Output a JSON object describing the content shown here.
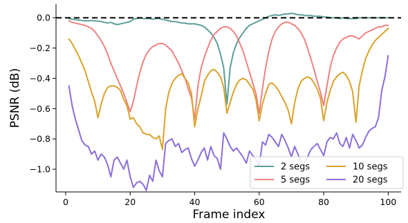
{
  "chart_data": {
    "type": "line",
    "xlabel": "Frame index",
    "ylabel": "PSNR (dB)",
    "xlim": [
      -3,
      104
    ],
    "ylim": [
      -1.15,
      0.09
    ],
    "xticks": [
      0,
      20,
      40,
      60,
      80,
      100
    ],
    "yticks": [
      0.0,
      -0.2,
      -0.4,
      -0.6,
      -0.8,
      -1.0
    ],
    "ytick_labels": [
      "0.0",
      "−0.2",
      "−0.4",
      "−0.6",
      "−0.8",
      "−1.0"
    ],
    "grid": false,
    "legend_position": "lower-right",
    "reference_line": {
      "y": 0.0,
      "style": "dashed",
      "color": "#000000"
    },
    "x": [
      1,
      2,
      3,
      4,
      5,
      6,
      7,
      8,
      9,
      10,
      11,
      12,
      13,
      14,
      15,
      16,
      17,
      18,
      19,
      20,
      21,
      22,
      23,
      24,
      25,
      26,
      27,
      28,
      29,
      30,
      31,
      32,
      33,
      34,
      35,
      36,
      37,
      38,
      39,
      40,
      41,
      42,
      43,
      44,
      45,
      46,
      47,
      48,
      49,
      50,
      51,
      52,
      53,
      54,
      55,
      56,
      57,
      58,
      59,
      60,
      61,
      62,
      63,
      64,
      65,
      66,
      67,
      68,
      69,
      70,
      71,
      72,
      73,
      74,
      75,
      76,
      77,
      78,
      79,
      80,
      81,
      82,
      83,
      84,
      85,
      86,
      87,
      88,
      89,
      90,
      91,
      92,
      93,
      94,
      95,
      96,
      97,
      98,
      99,
      100
    ],
    "series": [
      {
        "name": "2 segs",
        "color": "#5a9e98",
        "values": [
          -0.005,
          -0.01,
          -0.012,
          -0.015,
          -0.018,
          -0.02,
          -0.02,
          -0.018,
          -0.02,
          -0.022,
          -0.025,
          -0.03,
          -0.035,
          -0.03,
          -0.04,
          -0.045,
          -0.04,
          -0.035,
          -0.03,
          -0.025,
          -0.01,
          -0.005,
          0.0,
          -0.005,
          -0.005,
          -0.005,
          -0.01,
          -0.005,
          -0.005,
          -0.01,
          -0.015,
          -0.02,
          -0.025,
          -0.025,
          -0.03,
          -0.035,
          -0.035,
          -0.04,
          -0.04,
          -0.04,
          -0.045,
          -0.05,
          -0.06,
          -0.08,
          -0.1,
          -0.13,
          -0.17,
          -0.24,
          -0.33,
          -0.57,
          -0.33,
          -0.23,
          -0.17,
          -0.13,
          -0.1,
          -0.07,
          -0.05,
          -0.04,
          -0.03,
          -0.02,
          -0.01,
          0.0,
          0.01,
          0.015,
          0.02,
          0.015,
          0.02,
          0.025,
          0.025,
          0.03,
          0.025,
          0.02,
          0.02,
          0.015,
          0.015,
          0.015,
          0.01,
          0.01,
          0.01,
          0.005,
          0.005,
          0.0,
          0.0,
          0.0,
          -0.005,
          0.0,
          -0.005,
          -0.005,
          -0.005,
          -0.005,
          0.0,
          0.0,
          0.0,
          0.0,
          0.0,
          0.0,
          0.0,
          0.0,
          0.0,
          0.0
        ]
      },
      {
        "name": "5 segs",
        "color": "#f08080",
        "values": [
          -0.02,
          -0.03,
          -0.035,
          -0.04,
          -0.045,
          -0.05,
          -0.06,
          -0.07,
          -0.09,
          -0.12,
          -0.15,
          -0.19,
          -0.24,
          -0.3,
          -0.35,
          -0.4,
          -0.45,
          -0.5,
          -0.56,
          -0.62,
          -0.55,
          -0.45,
          -0.36,
          -0.29,
          -0.24,
          -0.21,
          -0.19,
          -0.18,
          -0.17,
          -0.17,
          -0.18,
          -0.2,
          -0.22,
          -0.26,
          -0.3,
          -0.35,
          -0.4,
          -0.47,
          -0.53,
          -0.67,
          -0.45,
          -0.33,
          -0.26,
          -0.2,
          -0.15,
          -0.11,
          -0.09,
          -0.07,
          -0.06,
          -0.06,
          -0.07,
          -0.09,
          -0.12,
          -0.17,
          -0.22,
          -0.29,
          -0.36,
          -0.43,
          -0.5,
          -0.63,
          -0.47,
          -0.33,
          -0.22,
          -0.14,
          -0.09,
          -0.06,
          -0.04,
          -0.03,
          -0.03,
          -0.04,
          -0.05,
          -0.07,
          -0.1,
          -0.14,
          -0.2,
          -0.27,
          -0.34,
          -0.42,
          -0.49,
          -0.58,
          -0.45,
          -0.33,
          -0.25,
          -0.2,
          -0.16,
          -0.14,
          -0.13,
          -0.12,
          -0.12,
          -0.13,
          -0.14,
          -0.12,
          -0.1,
          -0.09,
          -0.08,
          -0.07,
          -0.06,
          -0.06,
          -0.05,
          -0.05
        ]
      },
      {
        "name": "10 segs",
        "color": "#d9a22a",
        "values": [
          -0.14,
          -0.17,
          -0.21,
          -0.25,
          -0.3,
          -0.35,
          -0.42,
          -0.49,
          -0.55,
          -0.66,
          -0.57,
          -0.5,
          -0.46,
          -0.45,
          -0.45,
          -0.46,
          -0.48,
          -0.54,
          -0.58,
          -0.67,
          -0.66,
          -0.7,
          -0.72,
          -0.76,
          -0.77,
          -0.77,
          -0.79,
          -0.8,
          -0.78,
          -0.87,
          -0.6,
          -0.49,
          -0.43,
          -0.4,
          -0.38,
          -0.37,
          -0.4,
          -0.43,
          -0.5,
          -0.72,
          -0.6,
          -0.52,
          -0.42,
          -0.38,
          -0.35,
          -0.34,
          -0.36,
          -0.39,
          -0.46,
          -0.63,
          -0.56,
          -0.49,
          -0.44,
          -0.41,
          -0.4,
          -0.41,
          -0.44,
          -0.47,
          -0.54,
          -0.68,
          -0.57,
          -0.5,
          -0.44,
          -0.43,
          -0.45,
          -0.48,
          -0.52,
          -0.56,
          -0.61,
          -0.7,
          -0.56,
          -0.47,
          -0.42,
          -0.4,
          -0.39,
          -0.4,
          -0.43,
          -0.47,
          -0.53,
          -0.68,
          -0.56,
          -0.48,
          -0.42,
          -0.39,
          -0.37,
          -0.36,
          -0.38,
          -0.42,
          -0.49,
          -0.69,
          -0.45,
          -0.35,
          -0.27,
          -0.22,
          -0.18,
          -0.15,
          -0.13,
          -0.11,
          -0.09,
          -0.07
        ]
      },
      {
        "name": "20 segs",
        "color": "#8b6cdc",
        "values": [
          -0.45,
          -0.58,
          -0.67,
          -0.74,
          -0.81,
          -0.84,
          -0.85,
          -0.9,
          -0.88,
          -0.94,
          -0.9,
          -0.92,
          -0.97,
          -1.05,
          -0.94,
          -0.92,
          -0.96,
          -1.0,
          -0.94,
          -1.05,
          -1.12,
          -1.09,
          -1.08,
          -1.1,
          -1.14,
          -1.04,
          -1.08,
          -0.94,
          -1.01,
          -1.05,
          -0.83,
          -0.81,
          -0.8,
          -0.85,
          -0.83,
          -0.89,
          -0.87,
          -0.86,
          -0.93,
          -0.98,
          -0.94,
          -0.89,
          -0.86,
          -0.94,
          -0.85,
          -0.91,
          -0.93,
          -1.0,
          -0.76,
          -0.8,
          -0.85,
          -0.88,
          -0.86,
          -0.89,
          -0.92,
          -0.96,
          -0.88,
          -0.91,
          -0.94,
          -0.98,
          -0.82,
          -0.84,
          -0.77,
          -0.79,
          -0.82,
          -0.85,
          -0.77,
          -0.81,
          -0.86,
          -0.92,
          -0.85,
          -0.9,
          -0.95,
          -0.96,
          -0.92,
          -0.87,
          -0.85,
          -0.83,
          -0.87,
          -0.91,
          -0.82,
          -0.79,
          -0.8,
          -0.76,
          -0.83,
          -0.85,
          -0.79,
          -0.86,
          -0.77,
          -0.81,
          -0.86,
          -0.84,
          -0.79,
          -0.75,
          -0.73,
          -0.72,
          -0.66,
          -0.48,
          -0.39,
          -0.25
        ]
      }
    ]
  }
}
